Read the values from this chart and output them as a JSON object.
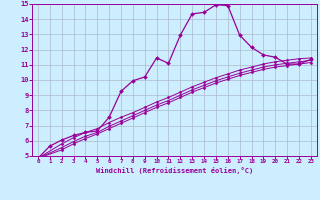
{
  "xlabel": "Windchill (Refroidissement éolien,°C)",
  "bg_color": "#cceeff",
  "line_color": "#990099",
  "grid_color": "#aabbcc",
  "xlim": [
    -0.5,
    23.5
  ],
  "ylim": [
    5,
    15
  ],
  "xticks": [
    0,
    1,
    2,
    3,
    4,
    5,
    6,
    7,
    8,
    9,
    10,
    11,
    12,
    13,
    14,
    15,
    16,
    17,
    18,
    19,
    20,
    21,
    22,
    23
  ],
  "yticks": [
    5,
    6,
    7,
    8,
    9,
    10,
    11,
    12,
    13,
    14,
    15
  ],
  "line1_x": [
    0,
    1,
    2,
    3,
    4,
    5,
    6,
    7,
    8,
    9,
    10,
    11,
    12,
    13,
    14,
    15,
    16,
    17,
    18,
    19,
    20,
    21,
    22,
    23
  ],
  "line1_y": [
    4.85,
    5.65,
    6.05,
    6.35,
    6.55,
    6.65,
    7.55,
    9.25,
    9.95,
    10.2,
    11.45,
    11.1,
    12.95,
    14.35,
    14.45,
    14.95,
    14.9,
    12.95,
    12.15,
    11.65,
    11.5,
    11.05,
    11.05,
    11.35
  ],
  "line2_x": [
    0,
    2,
    3,
    4,
    5,
    6,
    7,
    8,
    9,
    10,
    11,
    12,
    13,
    14,
    15,
    16,
    17,
    18,
    19,
    20,
    21,
    22,
    23
  ],
  "line2_y": [
    4.85,
    5.8,
    6.2,
    6.55,
    6.8,
    7.2,
    7.55,
    7.85,
    8.2,
    8.55,
    8.85,
    9.2,
    9.55,
    9.85,
    10.15,
    10.4,
    10.65,
    10.85,
    11.05,
    11.2,
    11.3,
    11.4,
    11.45
  ],
  "line3_x": [
    0,
    2,
    3,
    4,
    5,
    6,
    7,
    8,
    9,
    10,
    11,
    12,
    13,
    14,
    15,
    16,
    17,
    18,
    19,
    20,
    21,
    22,
    23
  ],
  "line3_y": [
    4.85,
    5.55,
    5.95,
    6.3,
    6.55,
    6.95,
    7.3,
    7.65,
    8.0,
    8.35,
    8.65,
    9.0,
    9.35,
    9.65,
    9.95,
    10.2,
    10.45,
    10.65,
    10.85,
    11.0,
    11.1,
    11.2,
    11.3
  ],
  "line4_x": [
    0,
    2,
    3,
    4,
    5,
    6,
    7,
    8,
    9,
    10,
    11,
    12,
    13,
    14,
    15,
    16,
    17,
    18,
    19,
    20,
    21,
    22,
    23
  ],
  "line4_y": [
    4.85,
    5.4,
    5.8,
    6.15,
    6.45,
    6.8,
    7.15,
    7.5,
    7.85,
    8.2,
    8.5,
    8.85,
    9.2,
    9.5,
    9.8,
    10.05,
    10.3,
    10.5,
    10.7,
    10.85,
    10.95,
    11.05,
    11.15
  ]
}
